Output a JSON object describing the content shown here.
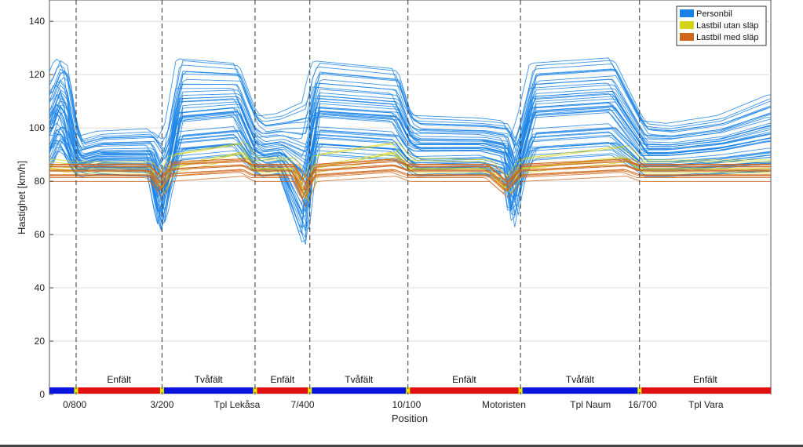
{
  "chart_data": {
    "type": "line",
    "title": "",
    "xlabel": "Position",
    "ylabel": "Hastighet [km/h]",
    "ylim": [
      0,
      148
    ],
    "yticks": [
      0,
      20,
      40,
      60,
      80,
      100,
      120,
      140
    ],
    "xlim": [
      0,
      100
    ],
    "grid": true,
    "legend": {
      "placement": "top-right",
      "entries": [
        {
          "label": "Personbil",
          "color": "#1a82e6"
        },
        {
          "label": "Lastbil utan släp",
          "color": "#d4d41a"
        },
        {
          "label": "Lastbil med släp",
          "color": "#d0661a"
        }
      ]
    },
    "x_tick_labels": [
      {
        "label": "0/800",
        "x": 3.5
      },
      {
        "label": "3/200",
        "x": 15.6
      },
      {
        "label": "Tpl Lekåsa",
        "x": 26.0
      },
      {
        "label": "7/400",
        "x": 35.1
      },
      {
        "label": "10/100",
        "x": 49.5
      },
      {
        "label": "Motoristen",
        "x": 63.0
      },
      {
        "label": "Tpl Naum",
        "x": 75.0
      },
      {
        "label": "16/700",
        "x": 82.2
      },
      {
        "label": "Tpl Vara",
        "x": 91.0
      }
    ],
    "dividers": [
      3.7,
      15.6,
      28.5,
      36.1,
      49.7,
      65.3,
      81.8
    ],
    "road_segments": [
      {
        "label": "",
        "start": 0,
        "end": 3.7,
        "color": "#0a14e0"
      },
      {
        "label": "Enfält",
        "start": 3.7,
        "end": 15.6,
        "color": "#e01010"
      },
      {
        "label": "Tvåfält",
        "start": 15.6,
        "end": 28.5,
        "color": "#0a14e0"
      },
      {
        "label": "Enfält",
        "start": 28.5,
        "end": 36.1,
        "color": "#e01010"
      },
      {
        "label": "Tvåfält",
        "start": 36.1,
        "end": 49.7,
        "color": "#0a14e0"
      },
      {
        "label": "Enfält",
        "start": 49.7,
        "end": 65.3,
        "color": "#e01010"
      },
      {
        "label": "Tvåfält",
        "start": 65.3,
        "end": 81.8,
        "color": "#0a14e0"
      },
      {
        "label": "Enfält",
        "start": 81.8,
        "end": 100,
        "color": "#e01010"
      }
    ],
    "series": [
      {
        "legend": "Personbil",
        "color": "#1a82e6",
        "count_drawn": 46,
        "x": [
          0,
          1.2,
          2.2,
          3.3,
          4.2,
          7,
          14,
          15.5,
          16.5,
          18,
          26,
          28.3,
          29.5,
          32,
          35.5,
          36.2,
          37,
          48,
          49.8,
          51,
          60,
          63.3,
          64.3,
          65.3,
          67,
          78,
          81.6,
          82.5,
          86,
          93,
          100
        ],
        "profiles": [
          {
            "name": "upper",
            "y": [
              118,
              126,
              124,
              104,
              96,
              98,
              99,
              96,
              102,
              126,
              124,
              107,
              104,
              105,
              110,
              120,
              125,
              122,
              106,
              104,
              103,
              102,
              96,
              104,
              124,
              126,
              106,
              102,
              101,
              104,
              112
            ]
          },
          {
            "name": "middle",
            "y": [
              100,
              110,
              106,
              92,
              88,
              90,
              90,
              76,
              84,
              106,
              108,
              93,
              91,
              92,
              84,
              92,
              108,
              106,
              96,
              94,
              94,
              92,
              80,
              90,
              108,
              110,
              96,
              92,
              92,
              94,
              98
            ]
          },
          {
            "name": "lower",
            "y": [
              84,
              92,
              90,
              84,
              82,
              83,
              82,
              60,
              76,
              88,
              90,
              84,
              82,
              83,
              54,
              80,
              90,
              88,
              84,
              82,
              83,
              80,
              62,
              78,
              88,
              90,
              84,
              82,
              82,
              83,
              84
            ]
          }
        ]
      },
      {
        "legend": "Lastbil utan släp",
        "color": "#d4d41a",
        "count_drawn": 6,
        "x": [
          0,
          3.5,
          14,
          15.6,
          17,
          27,
          28.4,
          34,
          35.5,
          37,
          48,
          50,
          61,
          63.5,
          65.5,
          80,
          82,
          100
        ],
        "profiles": [
          {
            "name": "upper",
            "y": [
              89,
              88,
              88,
              84,
              92,
              96,
              90,
              90,
              82,
              92,
              96,
              90,
              89,
              82,
              90,
              95,
              89,
              89
            ]
          },
          {
            "name": "lower",
            "y": [
              85,
              84,
              84,
              76,
              84,
              90,
              84,
              84,
              72,
              84,
              90,
              84,
              84,
              76,
              84,
              88,
              84,
              84
            ]
          }
        ]
      },
      {
        "legend": "Lastbil med släp",
        "color": "#d0661a",
        "count_drawn": 14,
        "x": [
          0,
          3.5,
          14,
          15.6,
          17,
          27,
          28.4,
          34,
          35.5,
          37,
          48,
          50,
          61,
          63.5,
          65.5,
          80,
          82,
          100
        ],
        "profiles": [
          {
            "name": "upper",
            "y": [
              86,
              86,
              86,
              82,
              87,
              88,
              86,
              86,
              80,
              86,
              88,
              86,
              86,
              80,
              86,
              88,
              86,
              86
            ]
          },
          {
            "name": "lower",
            "y": [
              80,
              80,
              80,
              74,
              80,
              82,
              80,
              80,
              70,
              80,
              82,
              80,
              80,
              74,
              80,
              82,
              80,
              80
            ]
          }
        ]
      }
    ]
  }
}
